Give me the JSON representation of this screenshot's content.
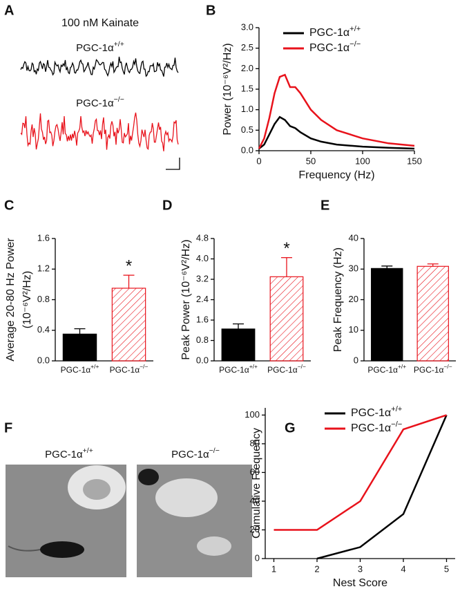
{
  "panel_a": {
    "letter": "A",
    "title": "100 nM Kainate",
    "labels": [
      "PGC-1α+/+",
      "PGC-1α−/−"
    ]
  },
  "panel_f": {
    "letter": "F",
    "labels": [
      "PGC-1α+/+",
      "PGC-1α−/−"
    ]
  },
  "chart_data": [
    {
      "type": "line",
      "letter": "B",
      "xlabel": "Frequency (Hz)",
      "ylabel": "Power (10⁻⁶V²/Hz)",
      "x": [
        0,
        5,
        10,
        15,
        20,
        25,
        30,
        35,
        40,
        50,
        60,
        75,
        100,
        125,
        150
      ],
      "series": [
        {
          "name": "PGC-1α+/+",
          "color": "#000000",
          "values": [
            0.05,
            0.15,
            0.4,
            0.65,
            0.82,
            0.75,
            0.6,
            0.55,
            0.45,
            0.3,
            0.22,
            0.15,
            0.1,
            0.07,
            0.05
          ]
        },
        {
          "name": "PGC-1α−/−",
          "color": "#e8121b",
          "values": [
            0.05,
            0.3,
            0.8,
            1.4,
            1.8,
            1.85,
            1.55,
            1.55,
            1.4,
            1.0,
            0.75,
            0.5,
            0.3,
            0.18,
            0.12
          ]
        }
      ],
      "xlim": [
        0,
        150
      ],
      "xticks": [
        0,
        50,
        100,
        150
      ],
      "ylim": [
        0,
        3
      ],
      "yticks": [
        {
          "value": 0,
          "label": "0.0"
        },
        0.5,
        {
          "value": 1,
          "label": "1.0"
        },
        1.5,
        {
          "value": 2,
          "label": "2.0"
        },
        2.5,
        {
          "value": 3,
          "label": "3.0"
        }
      ],
      "legend": "upper right"
    },
    {
      "type": "bar",
      "letter": "C",
      "ylabel": [
        "Average 20-80 Hz Power",
        "(10⁻⁶V²/Hz)"
      ],
      "categories": [
        "PGC-1α+/+",
        "PGC-1α−/−"
      ],
      "values": [
        0.35,
        0.95
      ],
      "errors": [
        0.07,
        0.17
      ],
      "colors": [
        "#000000",
        "#e8121b"
      ],
      "fill_styles": [
        "solid",
        "hatched"
      ],
      "significance": [
        null,
        "*"
      ],
      "ylim": [
        0,
        1.6
      ],
      "yticks": [
        {
          "value": 0,
          "label": "0.0"
        },
        0.4,
        0.8,
        1.2,
        1.6
      ]
    },
    {
      "type": "bar",
      "letter": "D",
      "ylabel": "Peak Power (10⁻⁶V²/Hz)",
      "categories": [
        "PGC-1α+/+",
        "PGC-1α−/−"
      ],
      "values": [
        1.25,
        3.3
      ],
      "errors": [
        0.2,
        0.75
      ],
      "colors": [
        "#000000",
        "#e8121b"
      ],
      "fill_styles": [
        "solid",
        "hatched"
      ],
      "significance": [
        null,
        "*"
      ],
      "ylim": [
        0,
        4.8
      ],
      "yticks": [
        {
          "value": 0,
          "label": "0.0"
        },
        0.8,
        1.6,
        2.4,
        3.2,
        {
          "value": 4,
          "label": "4.0"
        },
        4.8
      ]
    },
    {
      "type": "bar",
      "letter": "E",
      "ylabel": "Peak Frequency (Hz)",
      "categories": [
        "PGC-1α+/+",
        "PGC-1α−/−"
      ],
      "values": [
        30.2,
        30.9
      ],
      "errors": [
        0.8,
        0.8
      ],
      "colors": [
        "#000000",
        "#e8121b"
      ],
      "fill_styles": [
        "solid",
        "hatched"
      ],
      "ylim": [
        0,
        40
      ],
      "yticks": [
        0,
        10,
        20,
        30,
        40
      ]
    },
    {
      "type": "line",
      "letter": "G",
      "xlabel": "Nest Score",
      "ylabel": "Cumulative Frequency",
      "x": [
        1,
        2,
        3,
        4,
        5
      ],
      "series": [
        {
          "name": "PGC-1α+/+",
          "color": "#000000",
          "values": [
            null,
            0,
            8,
            31,
            100
          ]
        },
        {
          "name": "PGC-1α−/−",
          "color": "#e8121b",
          "values": [
            20,
            20,
            40,
            90,
            100
          ]
        }
      ],
      "xlim": [
        0.8,
        5.2
      ],
      "xticks": [
        1,
        2,
        3,
        4,
        5
      ],
      "ylim": [
        0,
        105
      ],
      "yticks": [
        0,
        20,
        40,
        60,
        80,
        100
      ],
      "legend": "upper left"
    }
  ]
}
